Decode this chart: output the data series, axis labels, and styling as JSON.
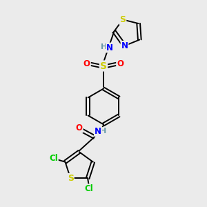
{
  "bg_color": "#ebebeb",
  "bond_color": "#000000",
  "atom_colors": {
    "N": "#0000ff",
    "O": "#ff0000",
    "S": "#cccc00",
    "Cl": "#00cc00",
    "C": "#000000",
    "H": "#6699aa"
  },
  "figsize": [
    3.0,
    3.0
  ],
  "dpi": 100
}
